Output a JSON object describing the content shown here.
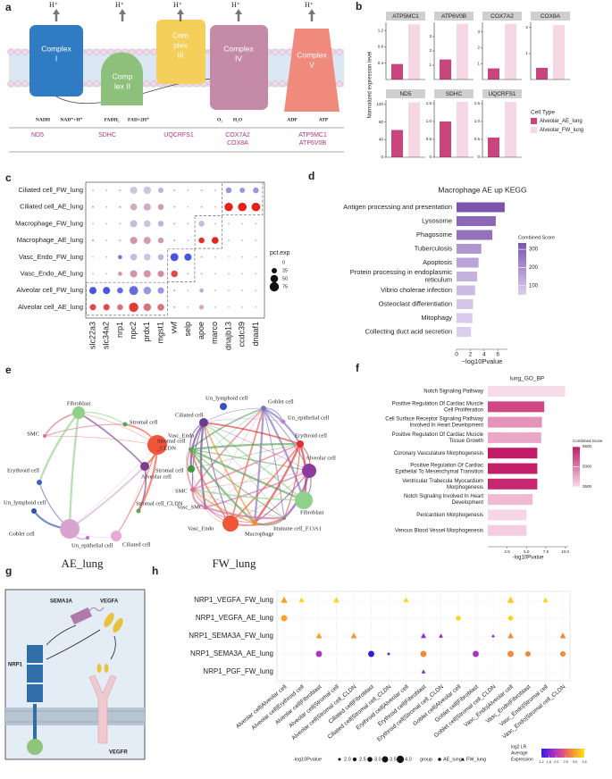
{
  "panel_labels": [
    "a",
    "b",
    "c",
    "d",
    "e",
    "f",
    "g",
    "h"
  ],
  "diagram_a": {
    "h_plus": [
      "H⁺",
      "H⁺",
      "H⁺",
      "H⁺",
      "H⁺"
    ],
    "complexes": [
      [
        "Complex",
        "I"
      ],
      [
        "Comp",
        "lex II"
      ],
      [
        "Com",
        "plex",
        "III"
      ],
      [
        "Complex",
        "IV"
      ],
      [
        "Complex",
        "V"
      ]
    ],
    "substrates": [
      "NADH",
      "NAD⁺+H⁺",
      "FADH₂",
      "FAD+2H⁺",
      "O₂",
      "H₂O",
      "ADP",
      "ATP"
    ],
    "genes": [
      [
        "ND5"
      ],
      [
        "SDHC"
      ],
      [
        "UQCRFS1"
      ],
      [
        "COX7A2",
        "COX8A"
      ],
      [
        "ATP5MC1",
        "ATP6V0B"
      ]
    ]
  },
  "chart_data": [
    {
      "type": "multi_bar",
      "ylabel": "Normalized expression level",
      "legend_title": "Cell Type",
      "series_names": [
        "Alveolar_AE_lung",
        "Alveolar_FW_lung"
      ],
      "colors": [
        "#c8457e",
        "#f6d7e4"
      ],
      "panels": [
        {
          "title": "ATP5MC1",
          "values": [
            0.38,
            1.35
          ],
          "ylim": [
            0,
            1.4
          ],
          "yticks": [
            0.4,
            0.8,
            1.2
          ]
        },
        {
          "title": "ATP6V0B",
          "values": [
            1.4,
            3.9
          ],
          "ylim": [
            0,
            4
          ],
          "yticks": [
            1,
            2,
            3
          ]
        },
        {
          "title": "COX7A2",
          "values": [
            0.7,
            3.5
          ],
          "ylim": [
            0,
            3.6
          ],
          "yticks": [
            1,
            2,
            3
          ]
        },
        {
          "title": "COX8A",
          "values": [
            0.45,
            2.1
          ],
          "ylim": [
            0,
            2.2
          ],
          "yticks": [
            1,
            2
          ]
        },
        {
          "title": "ND5",
          "values": [
            62,
            125
          ],
          "ylim": [
            0,
            130
          ],
          "yticks": [
            0,
            40,
            80,
            120
          ]
        },
        {
          "title": "SDHC",
          "values": [
            1.0,
            1.55
          ],
          "ylim": [
            0,
            1.6
          ],
          "yticks": [
            0,
            0.5,
            {
              "value": 1,
              "label": "1.0"
            },
            1.5
          ]
        },
        {
          "title": "UQCRFS1",
          "values": [
            0.55,
            1.55
          ],
          "ylim": [
            0,
            1.6
          ],
          "yticks": [
            0,
            0.5,
            {
              "value": 1,
              "label": "1.0"
            },
            1.5
          ]
        }
      ]
    },
    {
      "type": "dot_matrix",
      "genes": [
        "slc22a3",
        "slc34a2",
        "nrp1",
        "npc2",
        "prdx1",
        "mgst1",
        "vwf",
        "selp",
        "apoe",
        "marco",
        "dnajb13",
        "ccdc39",
        "dnaaf1"
      ],
      "rows": [
        {
          "name": "Ciliated cell_FW_lung",
          "pct": [
            2,
            2,
            3,
            45,
            50,
            25,
            3,
            2,
            3,
            2,
            30,
            25,
            30
          ],
          "expr": [
            -0.3,
            -0.3,
            -0.3,
            0,
            0,
            -0.2,
            -0.3,
            -0.3,
            -0.3,
            -0.3,
            -0.6,
            -0.6,
            -0.6
          ]
        },
        {
          "name": "Ciliated cell_AE_lung",
          "pct": [
            3,
            2,
            4,
            40,
            45,
            30,
            3,
            2,
            3,
            2,
            60,
            65,
            65
          ],
          "expr": [
            0.5,
            0.4,
            0.3,
            0.3,
            0.3,
            0.5,
            0.3,
            0.3,
            0.3,
            0.3,
            2,
            2,
            2
          ]
        },
        {
          "name": "Macrophage_FW_lung",
          "pct": [
            2,
            2,
            2,
            45,
            40,
            30,
            3,
            2,
            30,
            2,
            2,
            2,
            2
          ],
          "expr": [
            -0.3,
            -0.3,
            -0.3,
            -0.1,
            0,
            -0.2,
            -0.3,
            -0.3,
            -0.1,
            -0.3,
            -0.3,
            -0.3,
            -0.3
          ]
        },
        {
          "name": "Macrophage_AE_lung",
          "pct": [
            3,
            2,
            3,
            45,
            45,
            30,
            3,
            2,
            30,
            40,
            2,
            2,
            2
          ],
          "expr": [
            0.5,
            0.3,
            0.3,
            0.6,
            0.5,
            0.5,
            0.3,
            0.3,
            1.8,
            2,
            0.3,
            0.3,
            0.3
          ]
        },
        {
          "name": "Vasc_Endo_FW_lung",
          "pct": [
            2,
            2,
            15,
            40,
            40,
            30,
            55,
            45,
            3,
            2,
            2,
            2,
            2
          ],
          "expr": [
            -0.3,
            -0.3,
            -1,
            -0.1,
            0,
            -0.2,
            -1.5,
            -1.5,
            -0.3,
            -0.3,
            -0.3,
            -0.3,
            -0.3
          ]
        },
        {
          "name": "Vasc_Endo_AE_lung",
          "pct": [
            2,
            2,
            15,
            45,
            45,
            35,
            40,
            3,
            3,
            2,
            2,
            2,
            2
          ],
          "expr": [
            0.3,
            0.3,
            0.6,
            0.6,
            0.6,
            0.7,
            1.5,
            0.3,
            0.3,
            0.3,
            0.3,
            0.3,
            0.3
          ]
        },
        {
          "name": "Alveolar cell_FW_lung",
          "pct": [
            45,
            45,
            30,
            70,
            50,
            35,
            3,
            2,
            15,
            2,
            2,
            2,
            2
          ],
          "expr": [
            -1.5,
            -1.5,
            -1.2,
            -1.2,
            -0.6,
            -0.6,
            -0.3,
            -0.3,
            -0.3,
            -0.3,
            -0.3,
            -0.3,
            -0.3
          ]
        },
        {
          "name": "Alveolar cell_AE_lung",
          "pct": [
            35,
            35,
            30,
            75,
            50,
            40,
            3,
            2,
            20,
            2,
            2,
            2,
            2
          ],
          "expr": [
            1.5,
            1.5,
            1,
            1.7,
            1,
            1,
            0.3,
            0.3,
            0.3,
            0.3,
            0.3,
            0.3,
            0.3
          ]
        }
      ],
      "size_legend_title": "pct.exp",
      "size_ticks": [
        0,
        25,
        50,
        75
      ],
      "colors": [
        "#1d2fe0",
        "#cbc5e0",
        "#e8201a"
      ]
    },
    {
      "type": "hbar",
      "title": "Macrophage AE up KEGG",
      "categories": [
        [
          "Antigen processing and presentation"
        ],
        [
          "Lysosome"
        ],
        [
          "Phagosome"
        ],
        [
          "Tuberculosis"
        ],
        [
          "Apoptosis"
        ],
        [
          "Protein processing in endoplasmic",
          "reticulum"
        ],
        [
          "Vibrio cholerae infection"
        ],
        [
          "Osteoclast differentiation"
        ],
        [
          "Mitophagy"
        ],
        [
          "Collecting duct acid secretion"
        ]
      ],
      "values": [
        7.0,
        5.7,
        5.2,
        3.6,
        3.2,
        3.0,
        2.7,
        2.4,
        2.3,
        2.1
      ],
      "scores": [
        335,
        290,
        270,
        180,
        150,
        120,
        100,
        70,
        60,
        50
      ],
      "xlabel": "−log10Pvalue",
      "xlim": [
        0,
        7.4
      ],
      "xticks": [
        0,
        2,
        4,
        6
      ],
      "legend_title": "Combined.Score",
      "color_ticks": [
        100,
        200,
        300
      ],
      "colors": [
        "#dccfee",
        "#7d55ad"
      ]
    },
    {
      "type": "hbar",
      "title": "lung_GO_BP",
      "categories": [
        [
          "Notch Signaling Pathway"
        ],
        [
          "Positive Regulation Of Cardiac Muscle",
          "Cell Proliferation"
        ],
        [
          "Cell Surface Receptor Signaling Pathway",
          "Involved In Heart Development"
        ],
        [
          "Positive Regulation Of Cardiac Muscle",
          "Tissue Growth"
        ],
        [
          "Coronary Vasculature Morphogenesis"
        ],
        [
          "Positive Regulation Of Cardiac",
          "Epithelial To Mesenchymal Transition"
        ],
        [
          "Ventricular Trabecula Myocardium",
          "Morphogenesis"
        ],
        [
          "Notch Signaling Involved In Heart",
          "Development"
        ],
        [
          "Pericardium Morphogenesis"
        ],
        [
          "Venous Blood Vessel Morphogenesis"
        ]
      ],
      "values": [
        10.0,
        7.3,
        7.0,
        6.9,
        6.4,
        6.4,
        6.4,
        5.8,
        5.0,
        5.0
      ],
      "scores": [
        3500,
        5800,
        4600,
        4300,
        6500,
        6400,
        6300,
        4000,
        3600,
        3700
      ],
      "xlabel": "-log10Pvalue",
      "xlim": [
        0,
        10.4
      ],
      "xticks": [
        2.5,
        {
          "value": 5,
          "label": "5.0"
        },
        7.5,
        {
          "value": 10,
          "label": "10.0"
        }
      ],
      "legend_title": "Combined.Score",
      "color_ticks": [
        3500,
        5000,
        6500
      ],
      "colors": [
        "#f8dbe9",
        "#c21a66"
      ]
    },
    {
      "type": "lr_dot",
      "pairs": [
        "Alveolar cell|Alveolar cell",
        "Alveolar cell|Erythroid cell",
        "Alveolar cell|Fibroblast",
        "Alveolar cell|Stromal cell",
        "Alveolar cell|Stromal cell_CLDN",
        "Ciliated cell|Fibroblast",
        "Ciliated cell|Stromal cell_CLDN",
        "Erythroid cell|Alveolar cell",
        "Erythroid cell|Fibroblast",
        "Erythroid cell|Stromal cell_CLDN",
        "Goblet cell|Alveolar cell",
        "Goblet cell|Fibroblast",
        "Goblet cell|Stromal cell_CLDN",
        "Vasc_Endo|Alveolar cell",
        "Vasc_Endo|Fibroblast",
        "Vasc_Endo|Stromal cell",
        "Vasc_Endo|Stromal cell_CLDN"
      ],
      "rows": [
        {
          "name": "NRP1_VEGFA_FW_lung",
          "shape": "triangle",
          "pval": [
            3.5,
            3,
            null,
            3.2,
            null,
            null,
            null,
            3,
            null,
            null,
            null,
            null,
            null,
            3.5,
            null,
            3,
            null
          ],
          "expr": [
            3.0,
            3.4,
            null,
            3.4,
            null,
            null,
            null,
            3.4,
            null,
            null,
            null,
            null,
            null,
            3.3,
            null,
            3.4,
            null
          ]
        },
        {
          "name": "NRP1_VEGFA_AE_lung",
          "shape": "circle",
          "pval": [
            3.5,
            null,
            null,
            null,
            null,
            null,
            null,
            null,
            null,
            null,
            3,
            null,
            null,
            3,
            null,
            null,
            null
          ],
          "expr": [
            3.0,
            null,
            null,
            null,
            null,
            null,
            null,
            null,
            null,
            null,
            3.4,
            null,
            null,
            3.4,
            null,
            null,
            null
          ]
        },
        {
          "name": "NRP1_SEMA3A_FW_lung",
          "shape": "triangle",
          "pval": [
            null,
            null,
            3.2,
            null,
            3.2,
            null,
            null,
            null,
            3,
            2.5,
            null,
            null,
            2.2,
            3.2,
            null,
            null,
            3.2
          ],
          "expr": [
            null,
            null,
            3.0,
            null,
            2.9,
            null,
            null,
            null,
            1.8,
            1.6,
            null,
            null,
            1.6,
            2.8,
            null,
            null,
            2.8
          ]
        },
        {
          "name": "NRP1_SEMA3A_AE_lung",
          "shape": "circle",
          "pval": [
            null,
            null,
            3.5,
            null,
            null,
            3.5,
            2,
            null,
            3.5,
            null,
            null,
            3.5,
            null,
            3.5,
            3.2,
            null,
            3.2
          ],
          "expr": [
            null,
            null,
            1.9,
            null,
            null,
            1.2,
            1.5,
            null,
            2.8,
            null,
            null,
            1.9,
            null,
            2.8,
            2.8,
            null,
            2.8
          ]
        },
        {
          "name": "NRP1_PGF_FW_lung",
          "shape": "triangle",
          "pval": [
            null,
            null,
            null,
            null,
            null,
            null,
            null,
            null,
            2.5,
            null,
            null,
            null,
            null,
            null,
            null,
            null,
            null
          ],
          "expr": [
            null,
            null,
            null,
            null,
            null,
            null,
            null,
            null,
            1.6,
            null,
            null,
            null,
            null,
            null,
            null,
            null,
            null
          ]
        }
      ],
      "size_title": "-log10Pvalue",
      "size_ticks": [
        {
          "value": 2,
          "label": "2.0"
        },
        2.5,
        {
          "value": 3,
          "label": "3.0"
        },
        3.5,
        {
          "value": 4,
          "label": "4.0"
        }
      ],
      "group_title": "group",
      "group_items": [
        "AE_lung",
        "FW_lung"
      ],
      "color_title": [
        "log2 LR",
        "Average",
        "Expression"
      ],
      "color_ticks": [
        1.2,
        1.6,
        {
          "value": 2,
          "label": "2.0"
        },
        2.5,
        {
          "value": 3,
          "label": "3.0"
        },
        3.5
      ],
      "clim": [
        1.2,
        3.5
      ],
      "colors": [
        "#2a1fe0",
        "#9b2ccf",
        "#e0508a",
        "#f59a2a",
        "#ffe01a"
      ]
    }
  ],
  "networks": [
    {
      "caption": "AE_lung",
      "nodes": [
        "Fibroblast",
        "SMC",
        "Stromal cell",
        "Vasc_Endo",
        "Erythroid cell",
        "Alveolar cell",
        "Un_lymphoid cell",
        "Stromal cell_CLDN",
        "Goblet cell",
        "Un_epithelial cell",
        "Ciliated cell"
      ]
    },
    {
      "caption": "FW_lung",
      "nodes": [
        "Un_lymphoid cell",
        "Goblet cell",
        "Ciliated cell",
        "Un_epithelial cell",
        [
          "Stromal cell",
          "_CLDN"
        ],
        "Erythroid cell",
        "Stromal cell",
        "Alveolar cell",
        "SMC",
        "Fibroblast",
        "Vasc_SMC",
        "Immune cell_F13A1",
        "Vasc_Endo",
        "Macrophage"
      ]
    }
  ],
  "diagram_g": {
    "ligands": [
      "SEMA3A",
      "VEGFA"
    ],
    "receptors": [
      "NRP1",
      "VEGFR"
    ]
  }
}
